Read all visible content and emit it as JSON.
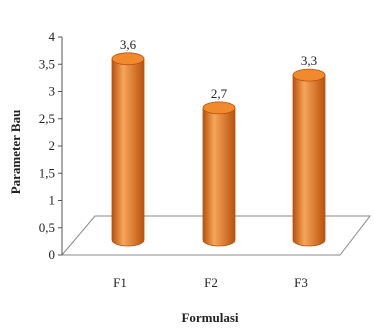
{
  "chart_data": {
    "type": "bar",
    "style": "3d-cylinder",
    "categories": [
      "F1",
      "F2",
      "F3"
    ],
    "values": [
      3.6,
      2.7,
      3.3
    ],
    "data_labels": [
      "3,6",
      "2,7",
      "3,3"
    ],
    "xlabel": "Formulasi",
    "ylabel": "Parameter Bau",
    "ylim": [
      0,
      4
    ],
    "yticks": [
      0,
      0.5,
      1,
      1.5,
      2,
      2.5,
      3,
      3.5,
      4
    ],
    "ytick_labels": [
      "0",
      "0,5",
      "1",
      "1,5",
      "2",
      "2,5",
      "3",
      "3,5",
      "4"
    ],
    "grid": false,
    "legend": "none",
    "colors": {
      "bar_body": "#e8761f",
      "bar_shade": "#b9520c",
      "bar_highlight": "#f6a55a",
      "bar_top": "#f08a2c",
      "floor": "#ffffff",
      "axis": "#555555"
    }
  }
}
